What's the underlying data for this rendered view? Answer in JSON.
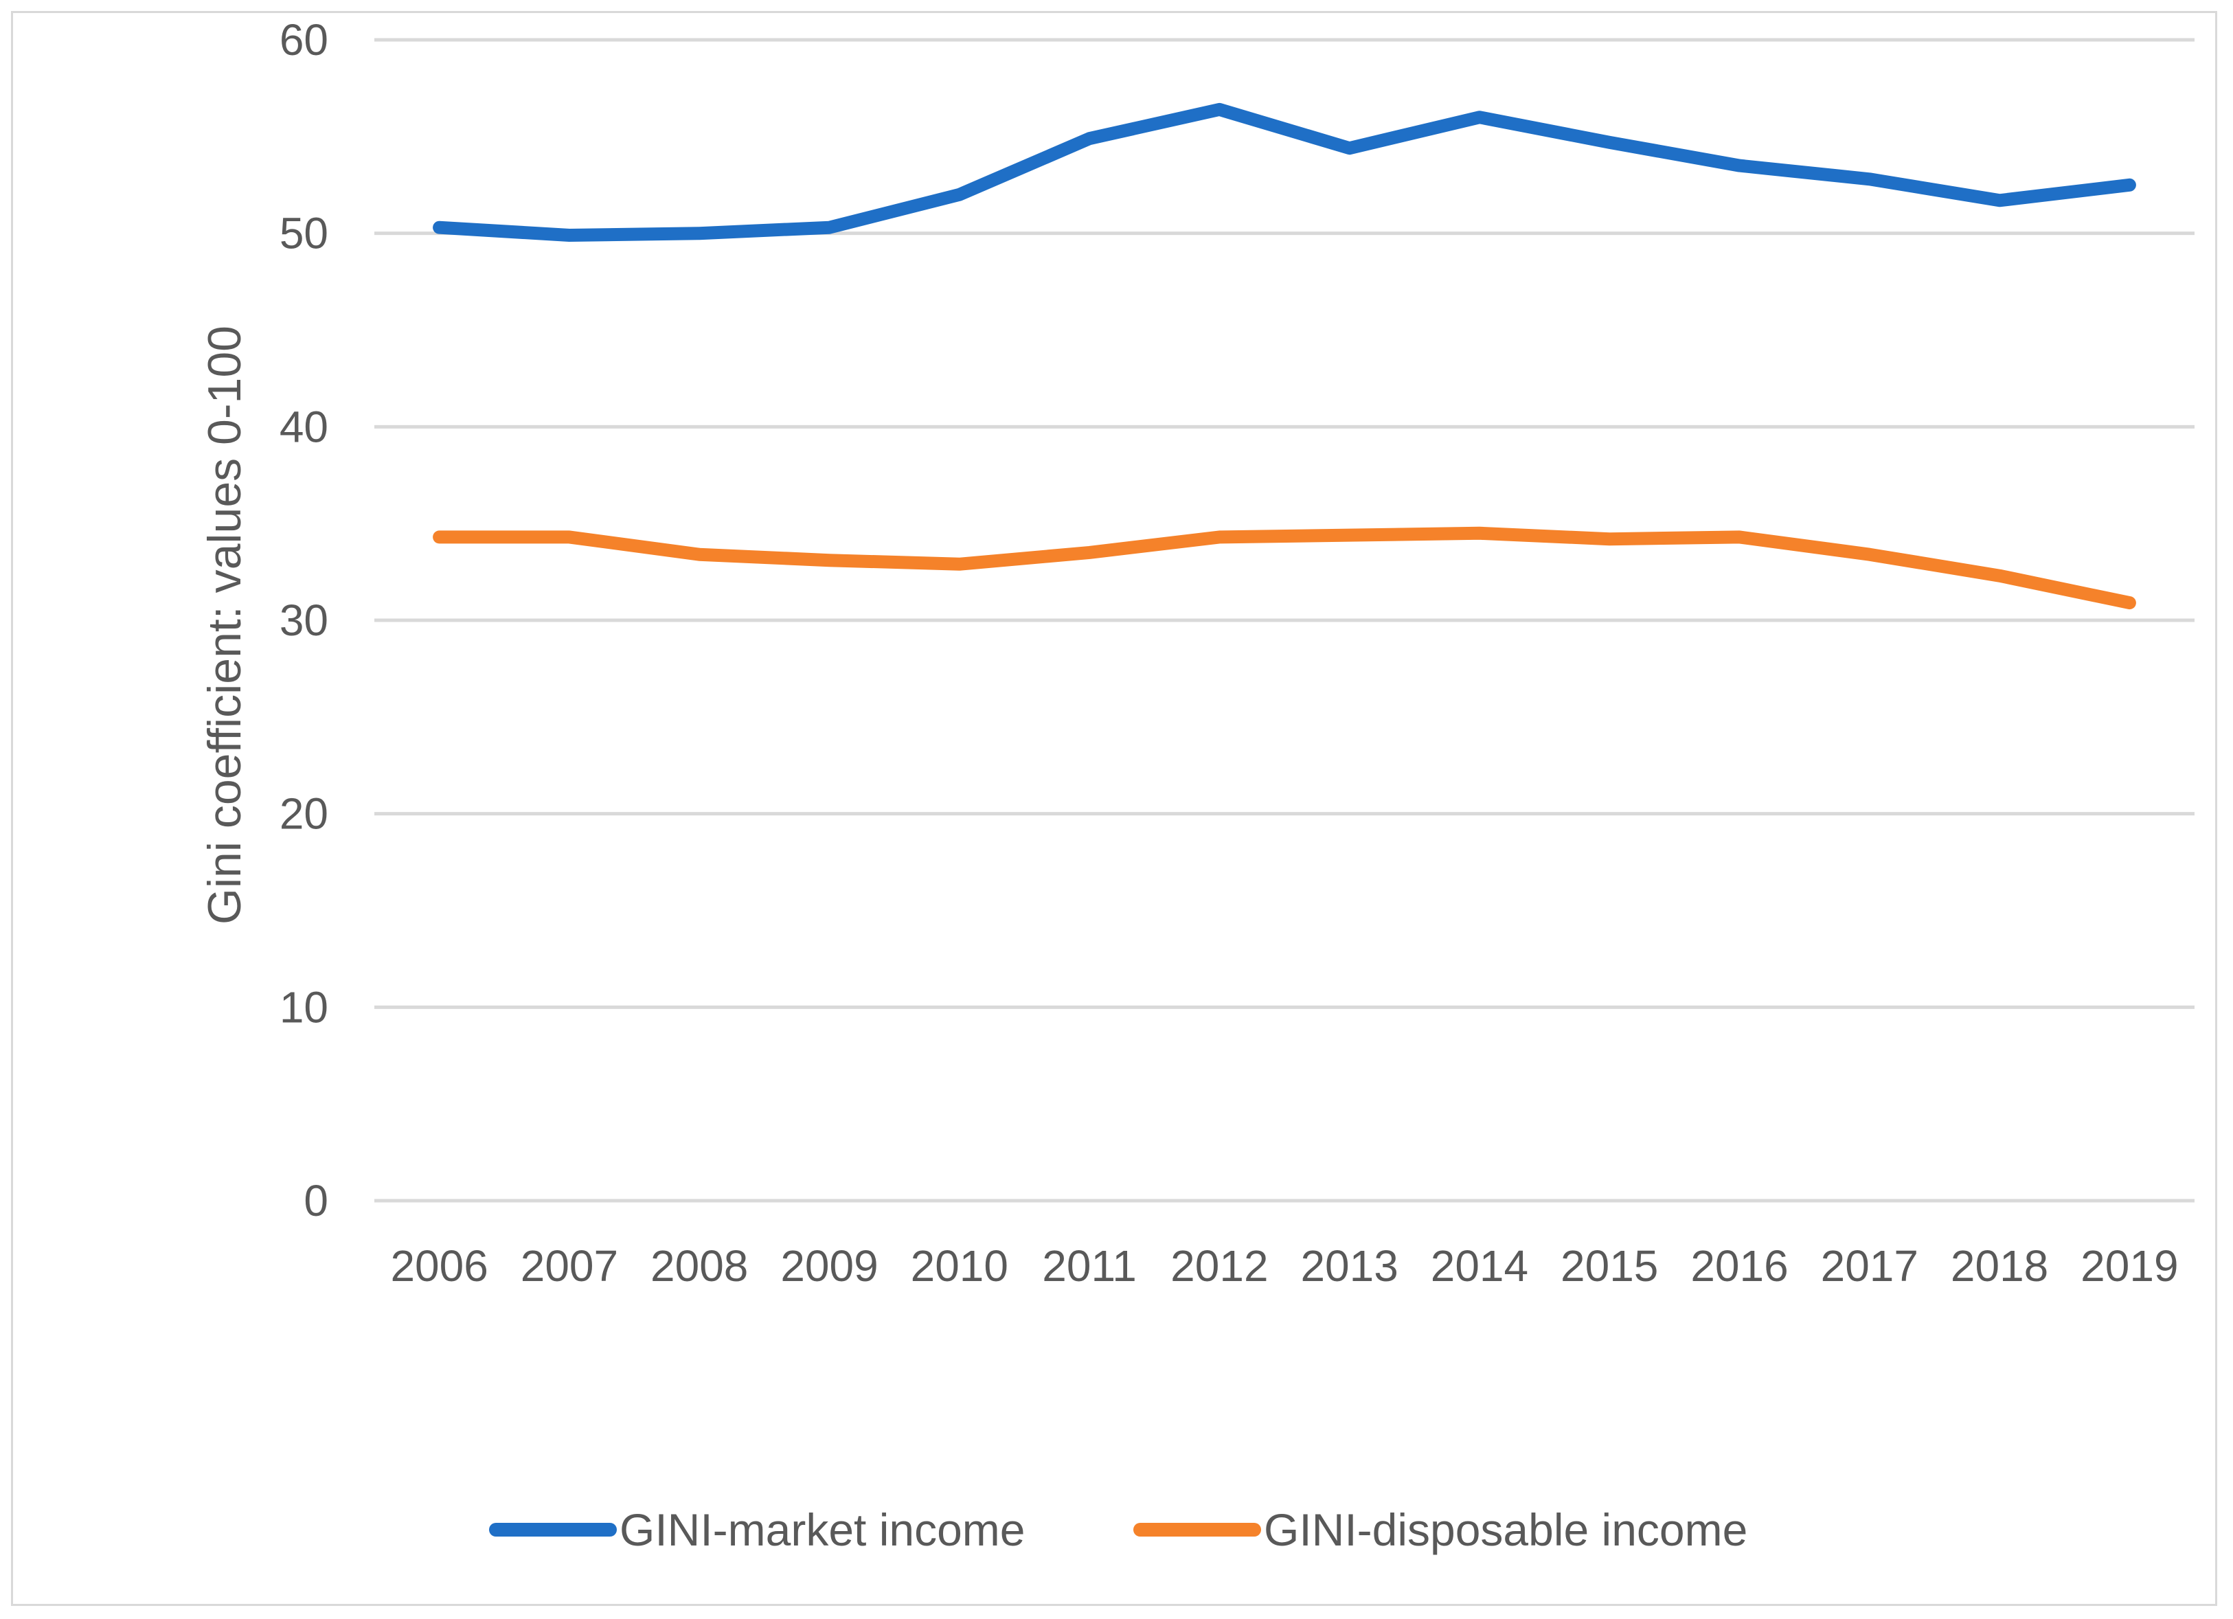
{
  "chart_data": {
    "type": "line",
    "title": "",
    "xlabel": "",
    "ylabel": "Gini coefficient: values 0-100",
    "ylim": [
      0,
      60
    ],
    "yticks": [
      0,
      10,
      20,
      30,
      40,
      50,
      60
    ],
    "grid": true,
    "legend_position": "bottom",
    "categories": [
      "2006",
      "2007",
      "2008",
      "2009",
      "2010",
      "2011",
      "2012",
      "2013",
      "2014",
      "2015",
      "2016",
      "2017",
      "2018",
      "2019"
    ],
    "series": [
      {
        "name": "GINI-market income",
        "color": "#1f6fc6",
        "values": [
          50.3,
          49.9,
          50.0,
          50.3,
          52.0,
          54.9,
          56.4,
          54.4,
          56.0,
          54.7,
          53.5,
          52.8,
          51.7,
          52.5
        ]
      },
      {
        "name": "GINI-disposable income",
        "color": "#f5822a",
        "values": [
          34.3,
          34.3,
          33.4,
          33.1,
          32.9,
          33.5,
          34.3,
          34.4,
          34.5,
          34.2,
          34.3,
          33.4,
          32.3,
          30.9
        ]
      }
    ]
  }
}
